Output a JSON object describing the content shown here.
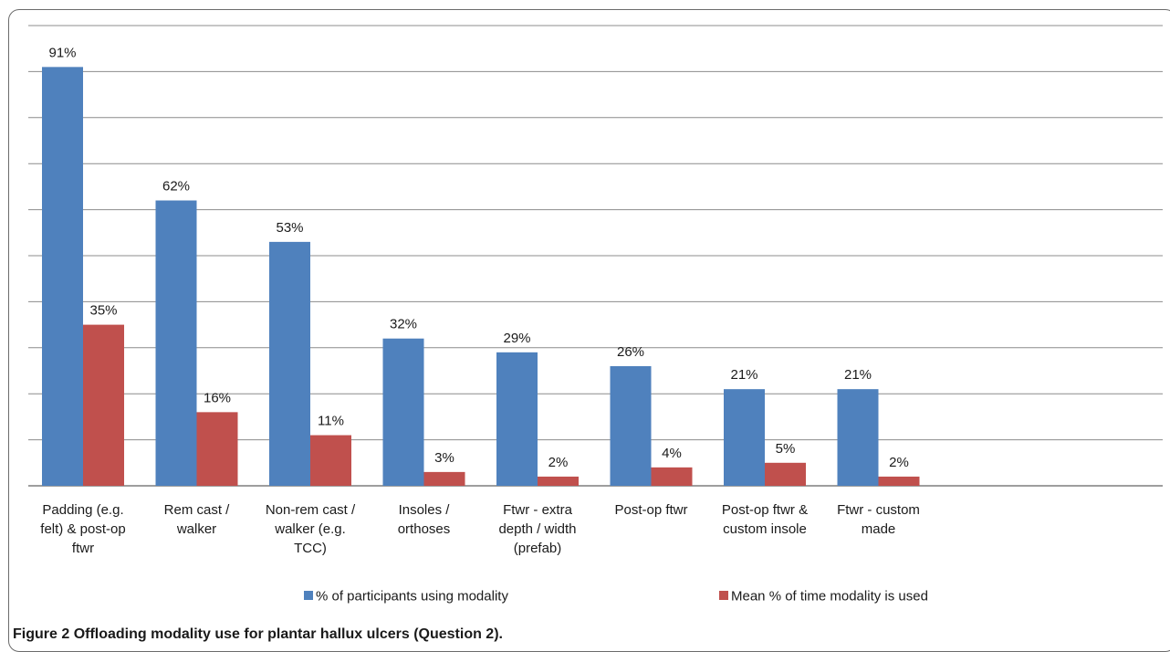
{
  "figure": {
    "number_label": "Figure 2",
    "caption_text": "Offloading modality use for plantar hallux ulcers (Question 2)."
  },
  "chart_data": {
    "type": "bar",
    "categories": [
      [
        "Padding (e.g.",
        "felt) & post-op",
        "ftwr"
      ],
      [
        "Rem cast /",
        "walker"
      ],
      [
        "Non-rem cast /",
        "walker (e.g.",
        "TCC)"
      ],
      [
        "Insoles /",
        "orthoses"
      ],
      [
        "Ftwr - extra",
        "depth / width",
        "(prefab)"
      ],
      [
        "Post-op ftwr"
      ],
      [
        "Post-op ftwr &",
        "custom insole"
      ],
      [
        "Ftwr - custom",
        "made"
      ]
    ],
    "series": [
      {
        "name": "% of participants using modality",
        "color": "#4f81bd",
        "values": [
          91,
          62,
          53,
          32,
          29,
          26,
          21,
          21
        ],
        "labels": [
          "91%",
          "62%",
          "53%",
          "32%",
          "29%",
          "26%",
          "21%",
          "21%"
        ]
      },
      {
        "name": "Mean % of time modality is used",
        "color": "#c0504d",
        "values": [
          35,
          16,
          11,
          3,
          2,
          4,
          5,
          2
        ],
        "labels": [
          "35%",
          "16%",
          "11%",
          "3%",
          "2%",
          "4%",
          "5%",
          "2%"
        ]
      }
    ],
    "ylim": [
      0,
      100
    ],
    "grid": true,
    "legend_position": "bottom"
  }
}
